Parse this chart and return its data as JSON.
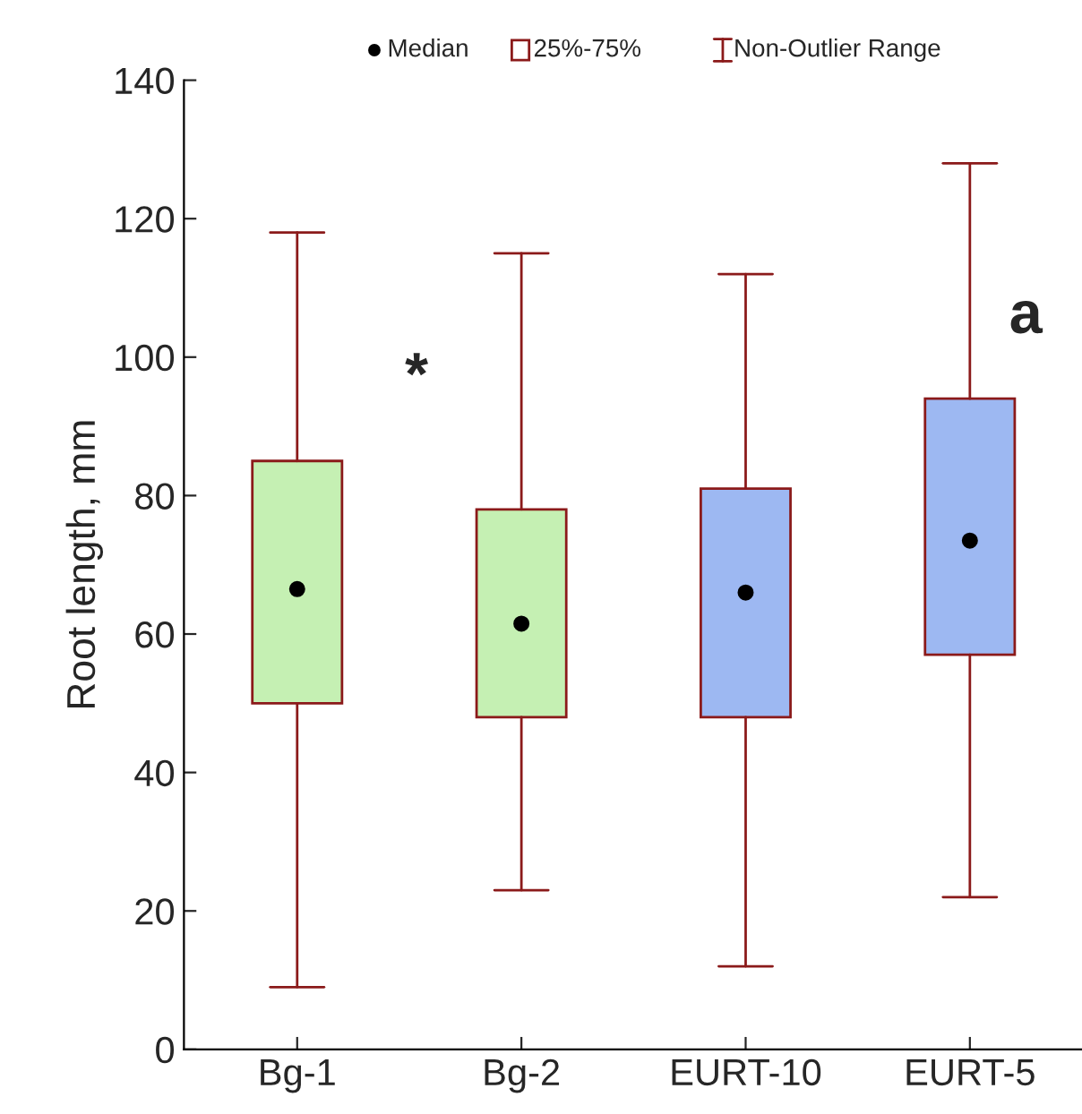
{
  "chart_data": {
    "type": "box",
    "ylabel": "Root length, mm",
    "categories": [
      "Bg-1",
      "Bg-2",
      "EURT-10",
      "EURT-5"
    ],
    "color": "#8b1a1a",
    "colors": [
      "#c5f0b3",
      "#c5f0b3",
      "#9db8f2",
      "#9db8f2"
    ],
    "boxes": [
      {
        "low": 9,
        "q1": 50,
        "median": 66.5,
        "q3": 85,
        "high": 118
      },
      {
        "low": 23,
        "q1": 48,
        "median": 61.5,
        "q3": 78,
        "high": 115
      },
      {
        "low": 12,
        "q1": 48,
        "median": 66,
        "q3": 81,
        "high": 112
      },
      {
        "low": 22,
        "q1": 57,
        "median": 73.5,
        "q3": 94,
        "high": 128
      }
    ],
    "ylim": [
      0,
      140
    ],
    "yticks": [
      0,
      20,
      40,
      60,
      80,
      100,
      120,
      140
    ],
    "annotations": [
      "Median",
      "25%-75%",
      "Non-Outlier Range",
      "*",
      "a"
    ]
  }
}
